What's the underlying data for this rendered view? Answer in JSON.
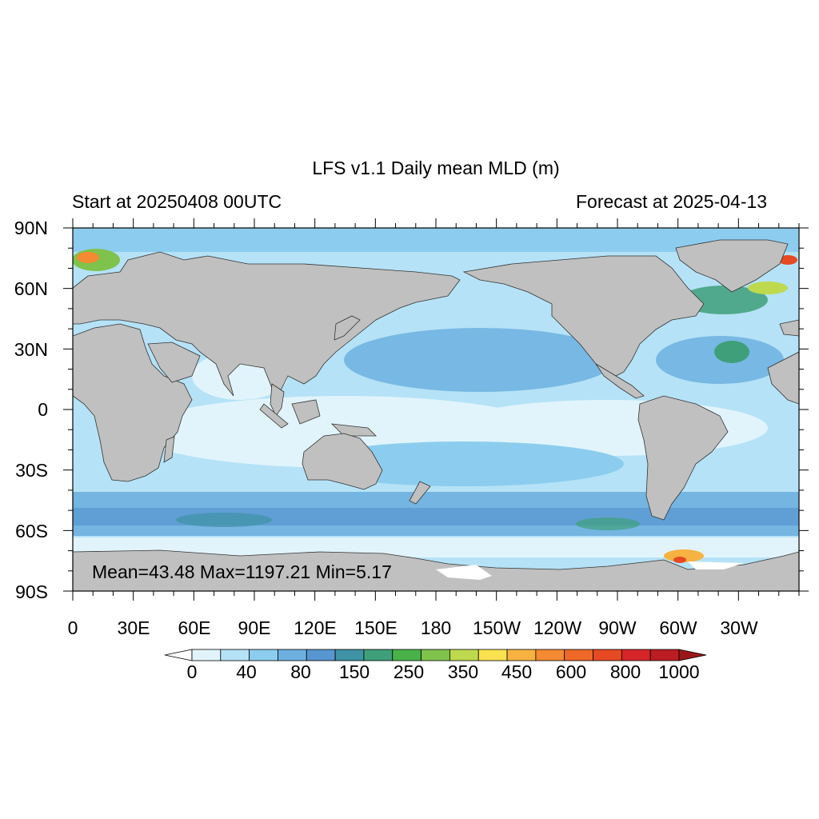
{
  "title": "LFS v1.1 Daily mean MLD (m)",
  "subtitle_left": "Start at 20250408 00UTC",
  "subtitle_right": "Forecast at 2025-04-13",
  "stats": "Mean=43.48  Max=1197.21  Min=5.17",
  "lat_labels": [
    "90N",
    "60N",
    "30N",
    "0",
    "30S",
    "60S",
    "90S"
  ],
  "lon_labels": [
    "0",
    "30E",
    "60E",
    "90E",
    "120E",
    "150E",
    "180",
    "150W",
    "120W",
    "90W",
    "60W",
    "30W"
  ],
  "colorbar_labels": [
    "0",
    "40",
    "80",
    "150",
    "250",
    "350",
    "450",
    "600",
    "800",
    "1000"
  ],
  "colorbar_colors": [
    "#ffffff",
    "#e1f4fc",
    "#b5e2f6",
    "#8ccdef",
    "#6db0e0",
    "#5796d0",
    "#3f93a5",
    "#3f9f7a",
    "#48b249",
    "#7fc24c",
    "#bed94e",
    "#f9e150",
    "#f7b241",
    "#f48a32",
    "#ee6928",
    "#e64a23",
    "#d62528",
    "#bb1d22",
    "#9b1619"
  ],
  "land_color": "#c0c0c0",
  "ocean_base_color": "#b5e2f6"
}
